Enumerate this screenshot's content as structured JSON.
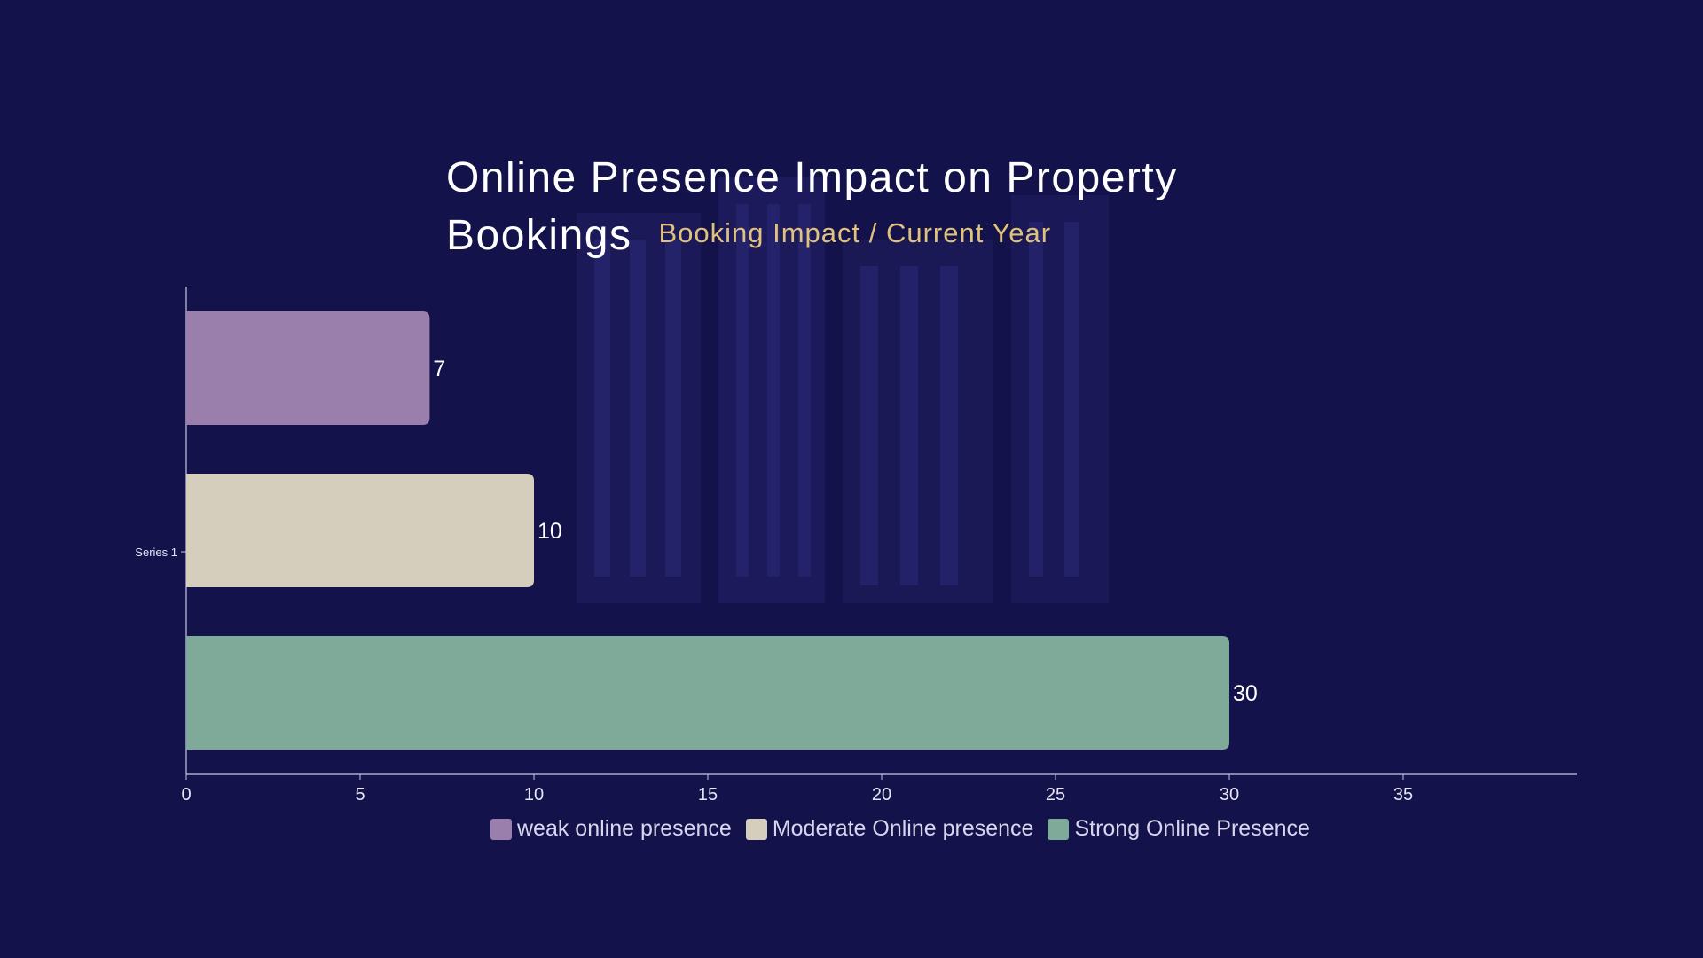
{
  "chart_data": {
    "type": "bar",
    "orientation": "horizontal",
    "title": "Online Presence Impact on Property Bookings",
    "subtitle": "Booking Impact / Current Year",
    "categories": [
      "Series 1"
    ],
    "series": [
      {
        "name": "weak online presence",
        "values": [
          7
        ],
        "color": "#9a7fad"
      },
      {
        "name": "Moderate Online presence",
        "values": [
          10
        ],
        "color": "#d5cebd"
      },
      {
        "name": "Strong Online Presence",
        "values": [
          30
        ],
        "color": "#7fa999"
      }
    ],
    "xlim": [
      0,
      40
    ],
    "x_ticks": [
      0,
      5,
      10,
      15,
      20,
      25,
      30,
      35
    ],
    "data_labels": true,
    "grid": false,
    "legend_position": "bottom"
  },
  "colors": {
    "background": "#14124b",
    "title": "#ffffff",
    "subtitle": "#e0c27a",
    "axis": "#c9c7e3"
  }
}
